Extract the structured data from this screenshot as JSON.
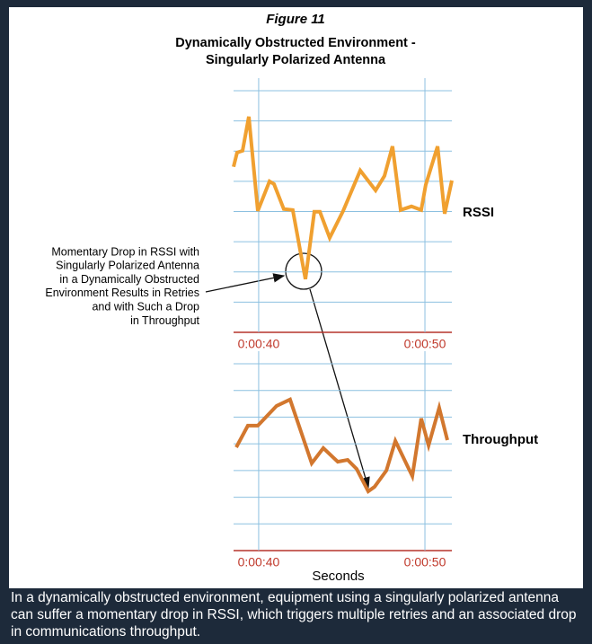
{
  "figure": "Figure 11",
  "title": [
    "Dynamically Obstructed Environment -",
    "Singularly Polarized Antenna"
  ],
  "caption": [
    "In a dynamically obstructed environment, equipment using a singularly polarized antenna",
    "can suffer a momentary drop in RSSI, which triggers multiple retries and an associated drop",
    "in communications throughput."
  ],
  "chart_data": [
    {
      "type": "line",
      "x": [
        38.49,
        38.7,
        39.03,
        39.41,
        39.95,
        40.65,
        40.92,
        41.51,
        42.05,
        42.81,
        43.35,
        43.68,
        44.27,
        45.08,
        46.11,
        47.03,
        47.57,
        48.05,
        48.54,
        49.19,
        49.78,
        50.05,
        50.76,
        51.19,
        51.62
      ],
      "series": [
        {
          "name": "RSSI",
          "color": "#f0a030",
          "values": [
            5.48,
            5.95,
            6.01,
            7.14,
            4.02,
            5.0,
            4.91,
            4.08,
            4.05,
            1.76,
            3.99,
            3.99,
            3.13,
            4.02,
            5.36,
            4.7,
            5.18,
            6.16,
            4.05,
            4.17,
            4.05,
            4.88,
            6.16,
            3.93,
            5.03
          ]
        }
      ],
      "xlim": [
        38.49,
        51.62
      ],
      "xticks": [
        {
          "value": 40,
          "label": "0:00:40"
        },
        {
          "value": 50,
          "label": "0:00:50"
        }
      ],
      "ylim": [
        0,
        8
      ],
      "yticks": [
        0,
        1,
        2,
        3,
        4,
        5,
        6,
        7,
        8
      ],
      "grid": true,
      "annotation": [
        "Momentary Drop in RSSI with",
        "Singularly Polarized Antenna",
        "in a Dynamically Obstructed",
        "Environment Results in Retries",
        "and with Such a Drop",
        "in Throughput"
      ]
    },
    {
      "type": "line",
      "x": [
        38.65,
        39.35,
        39.95,
        41.08,
        41.89,
        43.19,
        43.89,
        44.76,
        45.35,
        45.89,
        46.59,
        46.97,
        47.68,
        48.22,
        49.24,
        49.78,
        50.22,
        50.86,
        51.35
      ],
      "series": [
        {
          "name": "Throughput",
          "color": "#d2772e",
          "values": [
            3.87,
            4.68,
            4.68,
            5.42,
            5.66,
            3.27,
            3.84,
            3.33,
            3.4,
            3.06,
            2.22,
            2.39,
            3.0,
            4.11,
            2.79,
            4.95,
            3.94,
            5.35,
            4.14
          ]
        }
      ],
      "xlim": [
        38.49,
        51.62
      ],
      "xticks": [
        {
          "value": 40,
          "label": "0:00:40"
        },
        {
          "value": 50,
          "label": "0:00:50"
        }
      ],
      "x_label": "Seconds",
      "ylim": [
        0,
        7
      ],
      "yticks": [
        0,
        1,
        2,
        3,
        4,
        5,
        6,
        7
      ],
      "grid": true
    }
  ]
}
